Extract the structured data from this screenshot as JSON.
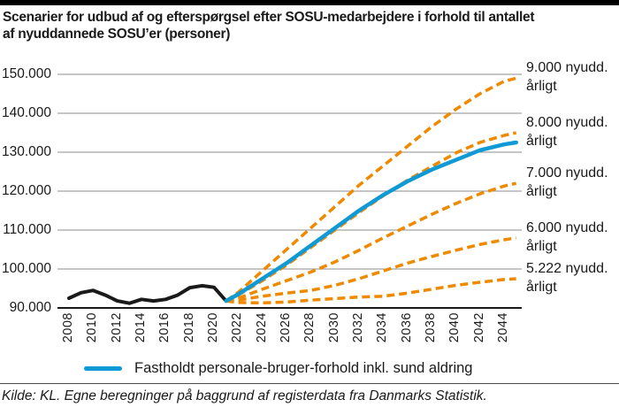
{
  "title": {
    "line1": "Scenarier for udbud af og efterspørgsel efter SOSU-medarbejdere i forhold til antallet",
    "line2": "af nyuddannede SOSU’er (personer)"
  },
  "legend": {
    "label": "Fastholdt personale-bruger-forhold inkl. sund aldring",
    "color": "#0f9ad6"
  },
  "source": "Kilde: KL. Egne beregninger på baggrund af registerdata fra Danmarks Statistik.",
  "colors": {
    "blue": "#0f9ad6",
    "orange": "#ef8a00",
    "black": "#1a1a1a",
    "grid": "#8c8c8c",
    "axis": "#1a1a1a"
  },
  "chart_data": {
    "type": "line",
    "title": "Scenarier for udbud af og efterspørgsel efter SOSU-medarbejdere i forhold til antallet af nyuddannede SOSU’er (personer)",
    "xlabel": "",
    "ylabel": "",
    "ylim": [
      90000,
      150000
    ],
    "x_range": [
      2008,
      2045
    ],
    "grid": true,
    "legend_position": "bottom",
    "y_ticks": [
      {
        "value": 90000,
        "label": "90.000"
      },
      {
        "value": 100000,
        "label": "100.000"
      },
      {
        "value": 110000,
        "label": "110.000"
      },
      {
        "value": 120000,
        "label": "120.000"
      },
      {
        "value": 130000,
        "label": "130.000"
      },
      {
        "value": 140000,
        "label": "140.000"
      },
      {
        "value": 150000,
        "label": "150.000"
      }
    ],
    "x_ticks": [
      {
        "year": 2008,
        "label": "2008"
      },
      {
        "year": 2010,
        "label": "2010"
      },
      {
        "year": 2012,
        "label": "2012"
      },
      {
        "year": 2014,
        "label": "2014"
      },
      {
        "year": 2016,
        "label": "2016"
      },
      {
        "year": 2018,
        "label": "2018"
      },
      {
        "year": 2020,
        "label": "2020"
      },
      {
        "year": 2022,
        "label": "2022"
      },
      {
        "year": 2024,
        "label": "2024"
      },
      {
        "year": 2026,
        "label": "2026"
      },
      {
        "year": 2028,
        "label": "2028"
      },
      {
        "year": 2030,
        "label": "2030"
      },
      {
        "year": 2032,
        "label": "2032"
      },
      {
        "year": 2034,
        "label": "2034"
      },
      {
        "year": 2036,
        "label": "2036"
      },
      {
        "year": 2038,
        "label": "2038"
      },
      {
        "year": 2040,
        "label": "2040"
      },
      {
        "year": 2042,
        "label": "2042"
      },
      {
        "year": 2044,
        "label": "2044"
      }
    ],
    "series": [
      {
        "id": "historical",
        "style": "solid",
        "color": "#1a1a1a",
        "width": 4,
        "x": [
          2008,
          2009,
          2010,
          2011,
          2012,
          2013,
          2014,
          2015,
          2016,
          2017,
          2018,
          2019,
          2020,
          2021
        ],
        "values": [
          92500,
          93900,
          94500,
          93300,
          91800,
          91200,
          92200,
          91800,
          92200,
          93300,
          95200,
          95700,
          95300,
          91800
        ]
      },
      {
        "id": "scenario_9000",
        "label": "9.000 nyudd. årligt",
        "style": "dashed",
        "color": "#ef8a00",
        "width": 3.5,
        "x": [
          2021,
          2022,
          2024,
          2026,
          2028,
          2030,
          2032,
          2034,
          2036,
          2038,
          2040,
          2042,
          2044,
          2045
        ],
        "values": [
          91800,
          94000,
          99500,
          105000,
          110500,
          116000,
          121500,
          126500,
          131500,
          136500,
          141000,
          145000,
          148200,
          149000
        ]
      },
      {
        "id": "scenario_8000",
        "label": "8.000 nyudd. årligt",
        "style": "dashed",
        "color": "#ef8a00",
        "width": 3.5,
        "x": [
          2021,
          2022,
          2024,
          2026,
          2028,
          2030,
          2032,
          2034,
          2036,
          2038,
          2040,
          2042,
          2044,
          2045
        ],
        "values": [
          91800,
          93300,
          97000,
          101000,
          105500,
          110000,
          114500,
          118800,
          122800,
          126300,
          129800,
          132500,
          134300,
          135000
        ]
      },
      {
        "id": "scenario_7000",
        "label": "7.000 nyudd. årligt",
        "style": "dashed",
        "color": "#ef8a00",
        "width": 3.5,
        "x": [
          2021,
          2022,
          2024,
          2026,
          2028,
          2030,
          2032,
          2034,
          2036,
          2038,
          2040,
          2042,
          2044,
          2045
        ],
        "values": [
          91800,
          92500,
          94800,
          97000,
          99200,
          101800,
          104800,
          108000,
          111000,
          114000,
          116800,
          119300,
          121300,
          122000
        ]
      },
      {
        "id": "scenario_6000",
        "label": "6.000 nyudd. årligt",
        "style": "dashed",
        "color": "#ef8a00",
        "width": 3.5,
        "x": [
          2021,
          2022,
          2024,
          2026,
          2028,
          2030,
          2032,
          2034,
          2036,
          2038,
          2040,
          2042,
          2044,
          2045
        ],
        "values": [
          91800,
          92000,
          93000,
          93800,
          94500,
          95800,
          97500,
          99500,
          101500,
          103200,
          104800,
          106300,
          107500,
          108000
        ]
      },
      {
        "id": "scenario_5222",
        "label": "5.222 nyudd. årligt",
        "style": "dashed",
        "color": "#ef8a00",
        "width": 3.5,
        "x": [
          2021,
          2022,
          2024,
          2026,
          2028,
          2030,
          2032,
          2034,
          2036,
          2038,
          2040,
          2042,
          2044,
          2045
        ],
        "values": [
          91800,
          91400,
          91300,
          91500,
          92000,
          92400,
          92800,
          93000,
          93800,
          94800,
          95800,
          96600,
          97300,
          97500
        ]
      },
      {
        "id": "demand",
        "label": "Fastholdt personale-bruger-forhold inkl. sund aldring",
        "style": "solid",
        "color": "#0f9ad6",
        "width": 4.5,
        "x": [
          2021,
          2022,
          2024,
          2026,
          2028,
          2030,
          2032,
          2034,
          2036,
          2038,
          2040,
          2042,
          2044,
          2045
        ],
        "values": [
          91800,
          93500,
          97500,
          101500,
          106000,
          110500,
          115000,
          119000,
          122500,
          125500,
          128000,
          130500,
          132000,
          132500
        ]
      }
    ],
    "right_labels": [
      {
        "series": "scenario_9000",
        "lines": [
          "9.000 nyudd.",
          "årligt"
        ]
      },
      {
        "series": "scenario_8000",
        "lines": [
          "8.000 nyudd.",
          "årligt"
        ]
      },
      {
        "series": "scenario_7000",
        "lines": [
          "7.000 nyudd.",
          "årligt"
        ]
      },
      {
        "series": "scenario_6000",
        "lines": [
          "6.000 nyudd.",
          "årligt"
        ]
      },
      {
        "series": "scenario_5222",
        "lines": [
          "5.222 nyudd.",
          "årligt"
        ]
      }
    ]
  }
}
